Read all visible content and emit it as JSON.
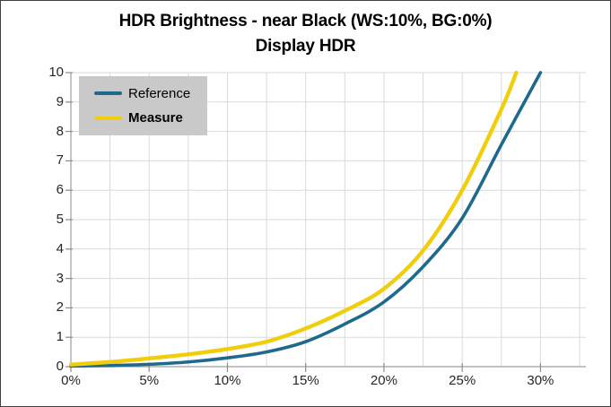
{
  "title": {
    "line1": "HDR Brightness - near Black (WS:10%, BG:0%)",
    "line2": "Display HDR"
  },
  "chart_data": {
    "type": "line",
    "title": "HDR Brightness - near Black (WS:10%, BG:0%) Display HDR",
    "xlabel": "",
    "ylabel": "",
    "grid": true,
    "legend_position": "top-left-inside",
    "x_axis": {
      "min": 0,
      "max": 32.9,
      "unit": "%",
      "grid_step": 2.5,
      "grid_max": 32.5,
      "tick_values": [
        0,
        5,
        10,
        15,
        20,
        25,
        30
      ],
      "tick_labels": [
        "0%",
        "5%",
        "10%",
        "15%",
        "20%",
        "25%",
        "30%"
      ]
    },
    "y_axis": {
      "min": 0,
      "max": 10,
      "grid_step": 1,
      "tick_values": [
        0,
        1,
        2,
        3,
        4,
        5,
        6,
        7,
        8,
        9,
        10
      ],
      "tick_labels": [
        "0",
        "1",
        "2",
        "3",
        "4",
        "5",
        "6",
        "7",
        "8",
        "9",
        "10"
      ]
    },
    "series": [
      {
        "name": "Reference",
        "color": "#1F6A8C",
        "line_width": 3.6,
        "bold_label": false,
        "points": [
          [
            0,
            0.02
          ],
          [
            2.5,
            0.04
          ],
          [
            5,
            0.08
          ],
          [
            7.5,
            0.16
          ],
          [
            10,
            0.3
          ],
          [
            12.5,
            0.5
          ],
          [
            15,
            0.85
          ],
          [
            17.5,
            1.45
          ],
          [
            20,
            2.2
          ],
          [
            22.5,
            3.4
          ],
          [
            25,
            5.05
          ],
          [
            27.5,
            7.55
          ],
          [
            30,
            10
          ]
        ]
      },
      {
        "name": "Measure",
        "color": "#F0CE0B",
        "line_width": 4.4,
        "bold_label": true,
        "points": [
          [
            0,
            0.07
          ],
          [
            2.5,
            0.16
          ],
          [
            5,
            0.28
          ],
          [
            7.5,
            0.42
          ],
          [
            10,
            0.6
          ],
          [
            12.5,
            0.85
          ],
          [
            15,
            1.3
          ],
          [
            17.5,
            1.9
          ],
          [
            20,
            2.65
          ],
          [
            22.5,
            3.95
          ],
          [
            25,
            6.0
          ],
          [
            27.5,
            8.75
          ],
          [
            28.45,
            10
          ]
        ]
      }
    ],
    "colors": {
      "background": "#FFFFFF",
      "border": "#404040",
      "grid": "#D9D9D9",
      "axis": "#9E9E9E",
      "tick": "#8C8C8C",
      "label": "#262626",
      "legend_background": "#C9C9C9",
      "title": "#000000"
    }
  }
}
